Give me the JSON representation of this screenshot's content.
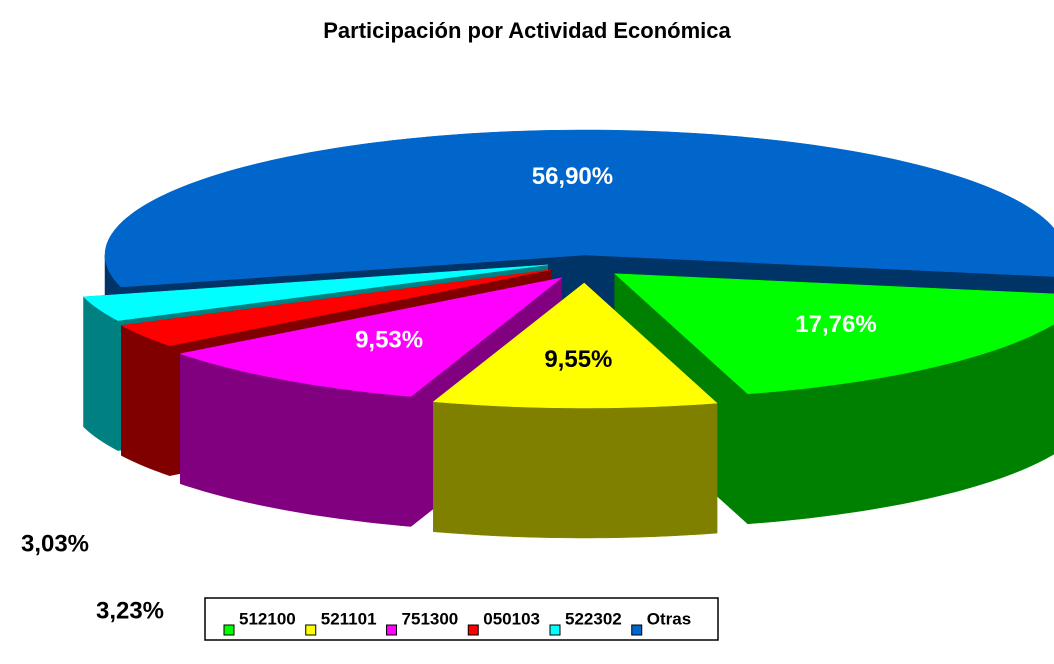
{
  "chart_data": {
    "type": "pie3d",
    "title": "Participación por Actividad Económica",
    "categories": [
      "512100",
      "521101",
      "751300",
      "050103",
      "522302",
      "Otras"
    ],
    "values": [
      17.76,
      9.55,
      9.53,
      3.03,
      3.23,
      56.9
    ],
    "value_labels": [
      "17,76%",
      "9,55%",
      "9,53%",
      "3,03%",
      "3,23%",
      "56,90%"
    ],
    "colors": [
      "#00ff00",
      "#ffff00",
      "#ff00ff",
      "#ff0000",
      "#00ffff",
      "#0066cc"
    ],
    "legend": "bottom"
  }
}
